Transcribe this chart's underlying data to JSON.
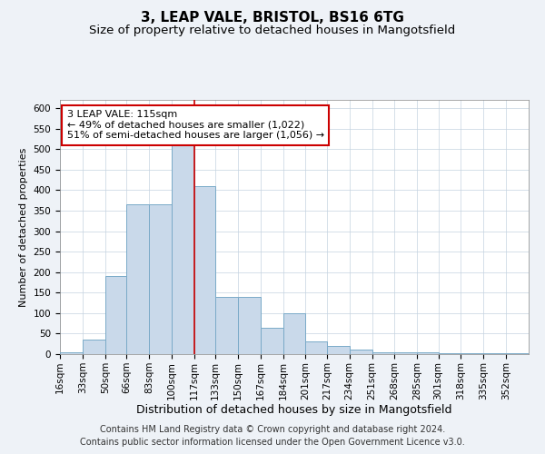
{
  "title": "3, LEAP VALE, BRISTOL, BS16 6TG",
  "subtitle": "Size of property relative to detached houses in Mangotsfield",
  "xlabel": "Distribution of detached houses by size in Mangotsfield",
  "ylabel": "Number of detached properties",
  "footer_line1": "Contains HM Land Registry data © Crown copyright and database right 2024.",
  "footer_line2": "Contains public sector information licensed under the Open Government Licence v3.0.",
  "annotation_line1": "3 LEAP VALE: 115sqm",
  "annotation_line2": "← 49% of detached houses are smaller (1,022)",
  "annotation_line3": "51% of semi-detached houses are larger (1,056) →",
  "bar_color": "#c9d9ea",
  "bar_edge_color": "#7aaac8",
  "ref_line_color": "#cc0000",
  "ref_line_x": 117,
  "categories": [
    "16sqm",
    "33sqm",
    "50sqm",
    "66sqm",
    "83sqm",
    "100sqm",
    "117sqm",
    "133sqm",
    "150sqm",
    "167sqm",
    "184sqm",
    "201sqm",
    "217sqm",
    "234sqm",
    "251sqm",
    "268sqm",
    "285sqm",
    "301sqm",
    "318sqm",
    "335sqm",
    "352sqm"
  ],
  "bin_edges": [
    16,
    33,
    50,
    66,
    83,
    100,
    117,
    133,
    150,
    167,
    184,
    201,
    217,
    234,
    251,
    268,
    285,
    301,
    318,
    335,
    352,
    369
  ],
  "values": [
    5,
    35,
    190,
    365,
    365,
    510,
    410,
    140,
    140,
    65,
    100,
    30,
    20,
    10,
    5,
    5,
    5,
    2,
    2,
    2,
    2
  ],
  "ylim": [
    0,
    620
  ],
  "yticks": [
    0,
    50,
    100,
    150,
    200,
    250,
    300,
    350,
    400,
    450,
    500,
    550,
    600
  ],
  "background_color": "#eef2f7",
  "plot_bg_color": "#ffffff",
  "title_fontsize": 11,
  "subtitle_fontsize": 9.5,
  "xlabel_fontsize": 9,
  "ylabel_fontsize": 8,
  "tick_fontsize": 7.5,
  "footer_fontsize": 7,
  "annotation_fontsize": 8
}
